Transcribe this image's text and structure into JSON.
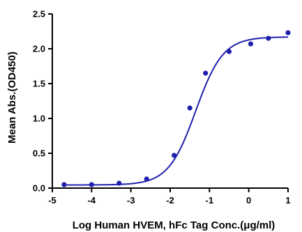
{
  "chart_data": {
    "type": "scatter",
    "title": "",
    "xlabel": "Log Human HVEM, hFc Tag Conc.(μg/ml)",
    "ylabel": "Mean Abs.(OD450)",
    "xlim": [
      -5,
      1
    ],
    "ylim": [
      0,
      2.5
    ],
    "x_ticks": [
      "-5",
      "-4",
      "-3",
      "-2",
      "-1",
      "0",
      "1"
    ],
    "y_ticks": [
      "0.0",
      "0.5",
      "1.0",
      "1.5",
      "2.0",
      "2.5"
    ],
    "grid": false,
    "legend": "none",
    "series": [
      {
        "x": [
          -4.7,
          -4.0,
          -3.3,
          -2.6,
          -1.9,
          -1.5,
          -1.1,
          -0.5,
          0.05,
          0.5,
          1.0
        ],
        "y": [
          0.05,
          0.05,
          0.07,
          0.13,
          0.47,
          1.15,
          1.65,
          1.96,
          2.07,
          2.15,
          2.23
        ],
        "marker": "circle",
        "fit": {
          "model": "4PL",
          "bottom": 0.045,
          "top": 2.17,
          "logEC50": -1.35,
          "hill": 1.25
        }
      }
    ],
    "colors": {
      "series": "#1f1fad",
      "axis": "#000000"
    }
  }
}
